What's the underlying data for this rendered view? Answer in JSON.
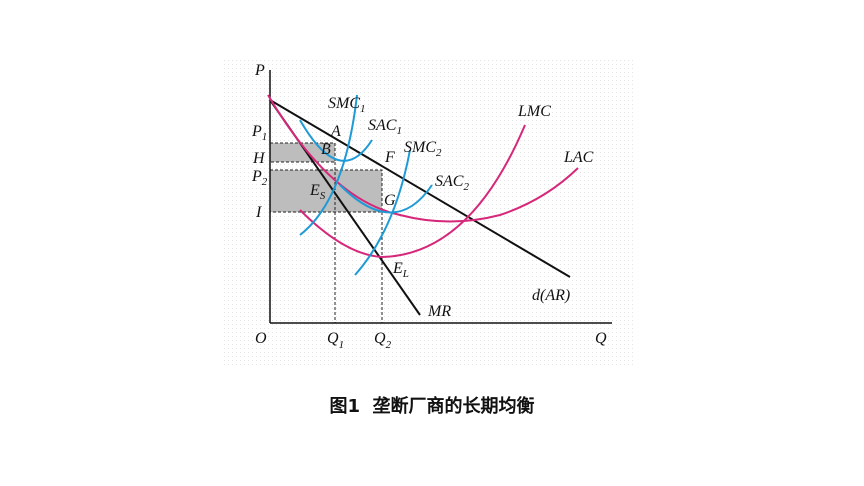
{
  "axes": {
    "y": "P",
    "x": "Q",
    "origin": "O"
  },
  "price_labels": [
    {
      "text": "P",
      "sub": "1"
    },
    {
      "text": "H"
    },
    {
      "text": "P",
      "sub": "2"
    },
    {
      "text": "I"
    }
  ],
  "quantity_labels": [
    {
      "text": "Q",
      "sub": "1"
    },
    {
      "text": "Q",
      "sub": "2"
    }
  ],
  "curves": [
    {
      "text": "SMC",
      "sub": "1"
    },
    {
      "text": "SAC",
      "sub": "1"
    },
    {
      "text": "SMC",
      "sub": "2"
    },
    {
      "text": "SAC",
      "sub": "2"
    },
    {
      "text": "LMC"
    },
    {
      "text": "LAC"
    },
    {
      "text": "MR"
    },
    {
      "text": "d(AR)"
    }
  ],
  "points": [
    {
      "text": "A"
    },
    {
      "text": "B"
    },
    {
      "text": "F"
    },
    {
      "text": "G"
    },
    {
      "text": "E",
      "sub": "S"
    },
    {
      "text": "E",
      "sub": "L"
    }
  ],
  "caption": "图1  垄断厂商的长期均衡"
}
